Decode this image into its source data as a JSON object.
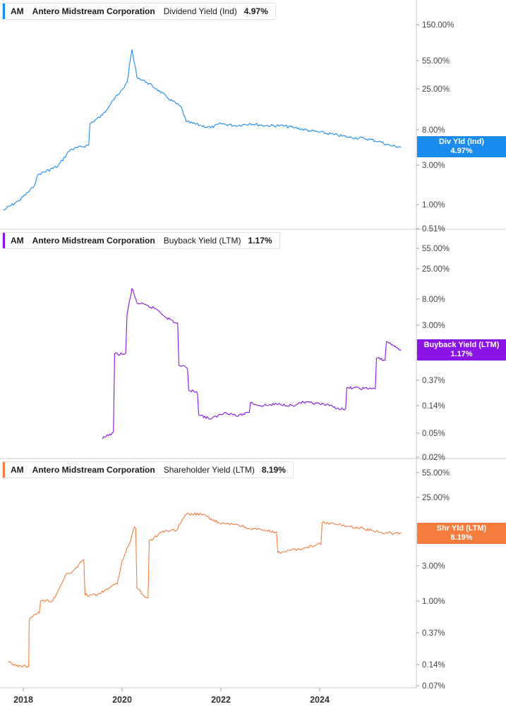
{
  "x_axis": {
    "ticks": [
      "2018",
      "2020",
      "2022",
      "2024"
    ]
  },
  "panels": [
    {
      "ticker": "AM",
      "company": "Antero Midstream Corporation",
      "metric": "Dividend Yield (Ind)",
      "value": "4.97%",
      "tag_label": "Div Yld (Ind)",
      "tag_value": "4.97%",
      "color": "#1a8cf0",
      "y_ticks": [
        "150.00%",
        "55.00%",
        "25.00%",
        "8.00%",
        "3.00%",
        "1.00%",
        "0.51%"
      ]
    },
    {
      "ticker": "AM",
      "company": "Antero Midstream Corporation",
      "metric": "Buyback Yield (LTM)",
      "value": "1.17%",
      "tag_label": "Buyback Yield (LTM)",
      "tag_value": "1.17%",
      "color": "#8a14e8",
      "y_ticks": [
        "55.00%",
        "25.00%",
        "8.00%",
        "3.00%",
        "1.00%",
        "0.37%",
        "0.14%",
        "0.05%",
        "0.02%"
      ]
    },
    {
      "ticker": "AM",
      "company": "Antero Midstream Corporation",
      "metric": "Shareholder Yield (LTM)",
      "value": "8.19%",
      "tag_label": "Shr Yld (LTM)",
      "tag_value": "8.19%",
      "color": "#f47c3c",
      "y_ticks": [
        "55.00%",
        "25.00%",
        "8.00%",
        "3.00%",
        "1.00%",
        "0.37%",
        "0.14%",
        "0.07%"
      ]
    }
  ],
  "chart_data": [
    {
      "type": "line",
      "title": "AM Antero Midstream Corporation Dividend Yield (Ind) 4.97%",
      "scale": "log",
      "ylim": [
        0.51,
        150
      ],
      "y_ticks": [
        150,
        55,
        25,
        8,
        3,
        1,
        0.51
      ],
      "series": [
        {
          "name": "Div Yld (Ind)",
          "points": [
            [
              2017.6,
              0.85
            ],
            [
              2017.9,
              1.1
            ],
            [
              2018.2,
              1.6
            ],
            [
              2018.3,
              2.3
            ],
            [
              2018.7,
              2.9
            ],
            [
              2018.95,
              4.6
            ],
            [
              2019.3,
              5.2
            ],
            [
              2019.35,
              9.5
            ],
            [
              2019.6,
              12
            ],
            [
              2019.8,
              18
            ],
            [
              2019.95,
              22
            ],
            [
              2020.1,
              30
            ],
            [
              2020.2,
              75
            ],
            [
              2020.3,
              35
            ],
            [
              2020.5,
              30
            ],
            [
              2020.7,
              25
            ],
            [
              2020.9,
              20
            ],
            [
              2021.2,
              15
            ],
            [
              2021.3,
              10
            ],
            [
              2021.6,
              9
            ],
            [
              2021.8,
              8.5
            ],
            [
              2022.0,
              9.5
            ],
            [
              2022.3,
              9
            ],
            [
              2022.6,
              9.5
            ],
            [
              2022.9,
              9
            ],
            [
              2023.2,
              9
            ],
            [
              2023.5,
              8.5
            ],
            [
              2023.8,
              7.8
            ],
            [
              2024.0,
              7.5
            ],
            [
              2024.3,
              7
            ],
            [
              2024.6,
              6.5
            ],
            [
              2024.9,
              6.3
            ],
            [
              2025.2,
              5.8
            ],
            [
              2025.45,
              5.1
            ],
            [
              2025.65,
              4.97
            ]
          ]
        }
      ]
    },
    {
      "type": "line",
      "title": "AM Antero Midstream Corporation Buyback Yield (LTM) 1.17%",
      "scale": "log",
      "ylim": [
        0.02,
        55
      ],
      "y_ticks": [
        55,
        25,
        8,
        3,
        1,
        0.37,
        0.14,
        0.05,
        0.02
      ],
      "series": [
        {
          "name": "Buyback Yield (LTM)",
          "points": [
            [
              2019.6,
              0.04
            ],
            [
              2019.8,
              0.05
            ],
            [
              2019.85,
              1.0
            ],
            [
              2020.05,
              1.0
            ],
            [
              2020.1,
              4.5
            ],
            [
              2020.2,
              12
            ],
            [
              2020.3,
              7
            ],
            [
              2020.7,
              5.5
            ],
            [
              2020.9,
              4
            ],
            [
              2021.1,
              3.2
            ],
            [
              2021.15,
              0.65
            ],
            [
              2021.3,
              0.6
            ],
            [
              2021.35,
              0.25
            ],
            [
              2021.5,
              0.24
            ],
            [
              2021.55,
              0.1
            ],
            [
              2021.8,
              0.085
            ],
            [
              2022.1,
              0.11
            ],
            [
              2022.35,
              0.095
            ],
            [
              2022.55,
              0.11
            ],
            [
              2022.6,
              0.16
            ],
            [
              2022.8,
              0.14
            ],
            [
              2023.2,
              0.15
            ],
            [
              2023.5,
              0.14
            ],
            [
              2023.6,
              0.16
            ],
            [
              2024.0,
              0.15
            ],
            [
              2024.2,
              0.14
            ],
            [
              2024.5,
              0.12
            ],
            [
              2024.55,
              0.28
            ],
            [
              2024.9,
              0.27
            ],
            [
              2025.1,
              0.27
            ],
            [
              2025.15,
              0.85
            ],
            [
              2025.3,
              0.8
            ],
            [
              2025.35,
              1.6
            ],
            [
              2025.65,
              1.17
            ]
          ]
        }
      ]
    },
    {
      "type": "line",
      "title": "AM Antero Midstream Corporation Shareholder Yield (LTM) 8.19%",
      "scale": "log",
      "ylim": [
        0.07,
        55
      ],
      "y_ticks": [
        55,
        25,
        8,
        3,
        1,
        0.37,
        0.14,
        0.07
      ],
      "series": [
        {
          "name": "Shr Yld (LTM)",
          "points": [
            [
              2017.7,
              0.15
            ],
            [
              2017.85,
              0.13
            ],
            [
              2018.1,
              0.13
            ],
            [
              2018.12,
              0.55
            ],
            [
              2018.3,
              0.7
            ],
            [
              2018.35,
              1.0
            ],
            [
              2018.6,
              1.0
            ],
            [
              2018.85,
              2.2
            ],
            [
              2019.0,
              2.5
            ],
            [
              2019.2,
              3.5
            ],
            [
              2019.25,
              1.2
            ],
            [
              2019.5,
              1.2
            ],
            [
              2019.75,
              1.5
            ],
            [
              2019.9,
              1.7
            ],
            [
              2020.0,
              3.5
            ],
            [
              2020.15,
              6
            ],
            [
              2020.25,
              10
            ],
            [
              2020.3,
              1.5
            ],
            [
              2020.5,
              1.1
            ],
            [
              2020.55,
              6.5
            ],
            [
              2020.8,
              8.5
            ],
            [
              2020.9,
              9
            ],
            [
              2021.1,
              9
            ],
            [
              2021.3,
              15
            ],
            [
              2021.6,
              15
            ],
            [
              2021.8,
              13
            ],
            [
              2022.0,
              11
            ],
            [
              2022.3,
              11
            ],
            [
              2022.6,
              9.5
            ],
            [
              2022.9,
              9
            ],
            [
              2023.1,
              8.5
            ],
            [
              2023.15,
              4.5
            ],
            [
              2023.4,
              4.8
            ],
            [
              2023.7,
              5.2
            ],
            [
              2024.0,
              6.0
            ],
            [
              2024.05,
              11.5
            ],
            [
              2024.5,
              10.5
            ],
            [
              2024.9,
              9.5
            ],
            [
              2025.2,
              8.5
            ],
            [
              2025.45,
              8.3
            ],
            [
              2025.65,
              8.19
            ]
          ]
        }
      ]
    }
  ]
}
